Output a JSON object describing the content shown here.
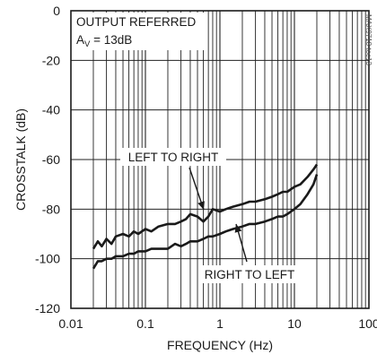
{
  "chart_data": {
    "type": "line",
    "title": "",
    "xlabel": "FREQUENCY (Hz)",
    "ylabel": "CROSSTALK (dB)",
    "xscale": "log",
    "xlim": [
      0.01,
      100
    ],
    "ylim": [
      -120,
      0
    ],
    "x_tick_values": [
      0.01,
      0.1,
      1,
      10,
      100
    ],
    "x_tick_labels": [
      "0.01",
      "0.1",
      "1",
      "10",
      "100"
    ],
    "y_tick_values": [
      0,
      -20,
      -40,
      -60,
      -80,
      -100,
      -120
    ],
    "y_tick_labels": [
      "0",
      "-20",
      "-40",
      "-60",
      "-80",
      "-100",
      "-120"
    ],
    "grid": true,
    "annotations": {
      "condition_line1": "OUTPUT REFERRED",
      "condition_line2_prefix": "A",
      "condition_line2_sub": "V",
      "condition_line2_rest": " = 13dB",
      "side_code": "MAX9718 toc13"
    },
    "series": [
      {
        "name": "LEFT TO RIGHT",
        "x": [
          0.02,
          0.023,
          0.026,
          0.03,
          0.035,
          0.04,
          0.05,
          0.06,
          0.07,
          0.08,
          0.1,
          0.12,
          0.15,
          0.2,
          0.25,
          0.3,
          0.35,
          0.4,
          0.5,
          0.6,
          0.7,
          0.8,
          1.0,
          1.2,
          1.5,
          2.0,
          2.5,
          3.0,
          4.0,
          5.0,
          6.0,
          7.0,
          8.0,
          10.0,
          12.0,
          15.0,
          18.0,
          20.0
        ],
        "values": [
          -96,
          -93,
          -95,
          -92,
          -94,
          -91,
          -90,
          -91,
          -89,
          -90,
          -88,
          -89,
          -87,
          -86,
          -86,
          -85,
          -84,
          -82,
          -83,
          -85,
          -83,
          -80,
          -81,
          -80,
          -79,
          -78,
          -77,
          -77,
          -76,
          -75,
          -74,
          -73,
          -73,
          -71,
          -70,
          -67,
          -64,
          -62
        ]
      },
      {
        "name": "RIGHT TO LEFT",
        "x": [
          0.02,
          0.023,
          0.026,
          0.03,
          0.035,
          0.04,
          0.05,
          0.06,
          0.07,
          0.08,
          0.1,
          0.12,
          0.15,
          0.2,
          0.25,
          0.3,
          0.35,
          0.4,
          0.5,
          0.6,
          0.7,
          0.8,
          1.0,
          1.2,
          1.5,
          2.0,
          2.5,
          3.0,
          4.0,
          5.0,
          6.0,
          7.0,
          8.0,
          10.0,
          12.0,
          15.0,
          18.0,
          20.0
        ],
        "values": [
          -104,
          -101,
          -101,
          -100,
          -100,
          -99,
          -99,
          -98,
          -98,
          -97,
          -97,
          -96,
          -96,
          -96,
          -94,
          -95,
          -94,
          -93,
          -93,
          -92,
          -91,
          -91,
          -90,
          -89,
          -88,
          -87,
          -86,
          -86,
          -85,
          -84,
          -83,
          -83,
          -82,
          -80,
          -78,
          -74,
          -70,
          -66
        ]
      }
    ]
  }
}
